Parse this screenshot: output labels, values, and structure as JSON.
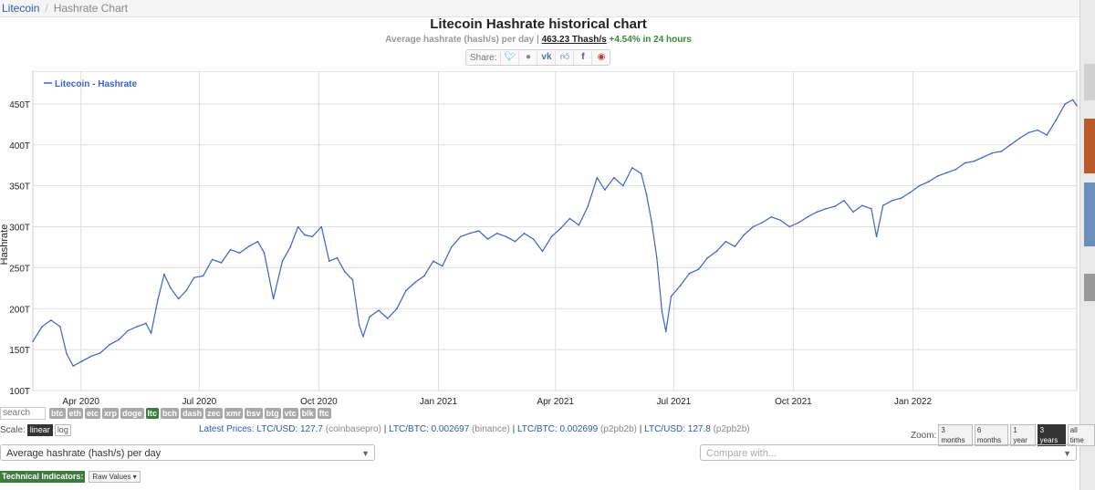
{
  "breadcrumb": {
    "root": "Litecoin",
    "separator": "/",
    "current": "Hashrate Chart"
  },
  "header": {
    "title": "Litecoin Hashrate historical chart",
    "subtitle_prefix": "Average hashrate (hash/s) per day",
    "subtitle_sep": "|",
    "current_value": "463.23 Thash/s",
    "change": "+4.54% in 24 hours"
  },
  "share": {
    "label": "Share:",
    "icons": [
      "twitter-icon",
      "reddit-icon",
      "vk-icon",
      "like-icon",
      "facebook-icon",
      "weibo-icon"
    ]
  },
  "chart_data": {
    "type": "line",
    "title": "",
    "xlabel": "",
    "ylabel": "Hashrate",
    "legend": "Litecoin - Hashrate",
    "legend_placement": "top-left",
    "grid": true,
    "color": "#3a64c8",
    "x_range": [
      "2020-02-24",
      "2022-05-07"
    ],
    "ylim": [
      100,
      490
    ],
    "y_ticks": [
      100,
      150,
      200,
      250,
      300,
      350,
      400,
      450
    ],
    "y_tick_labels": [
      "100T",
      "150T",
      "200T",
      "250T",
      "300T",
      "350T",
      "400T",
      "450T"
    ],
    "x_ticks": [
      {
        "date": "2020-04-01",
        "label": "Apr 2020"
      },
      {
        "date": "2020-07-01",
        "label": "Jul 2020"
      },
      {
        "date": "2020-10-01",
        "label": "Oct 2020"
      },
      {
        "date": "2021-01-01",
        "label": "Jan 2021"
      },
      {
        "date": "2021-04-01",
        "label": "Apr 2021"
      },
      {
        "date": "2021-07-01",
        "label": "Jul 2021"
      },
      {
        "date": "2021-10-01",
        "label": "Oct 2021"
      },
      {
        "date": "2022-01-01",
        "label": "Jan 2022"
      }
    ],
    "series": [
      {
        "name": "Litecoin - Hashrate",
        "points": [
          [
            "2020-02-24",
            160
          ],
          [
            "2020-03-02",
            178
          ],
          [
            "2020-03-09",
            186
          ],
          [
            "2020-03-16",
            178
          ],
          [
            "2020-03-21",
            145
          ],
          [
            "2020-03-26",
            130
          ],
          [
            "2020-04-02",
            136
          ],
          [
            "2020-04-09",
            142
          ],
          [
            "2020-04-16",
            146
          ],
          [
            "2020-04-23",
            156
          ],
          [
            "2020-04-30",
            162
          ],
          [
            "2020-05-07",
            173
          ],
          [
            "2020-05-14",
            178
          ],
          [
            "2020-05-21",
            182
          ],
          [
            "2020-05-25",
            170
          ],
          [
            "2020-05-30",
            210
          ],
          [
            "2020-06-04",
            242
          ],
          [
            "2020-06-09",
            225
          ],
          [
            "2020-06-15",
            212
          ],
          [
            "2020-06-21",
            222
          ],
          [
            "2020-06-27",
            238
          ],
          [
            "2020-07-04",
            240
          ],
          [
            "2020-07-11",
            260
          ],
          [
            "2020-07-18",
            256
          ],
          [
            "2020-07-25",
            272
          ],
          [
            "2020-08-01",
            268
          ],
          [
            "2020-08-08",
            276
          ],
          [
            "2020-08-15",
            282
          ],
          [
            "2020-08-20",
            268
          ],
          [
            "2020-08-27",
            212
          ],
          [
            "2020-09-03",
            258
          ],
          [
            "2020-09-09",
            275
          ],
          [
            "2020-09-15",
            300
          ],
          [
            "2020-09-20",
            290
          ],
          [
            "2020-09-26",
            288
          ],
          [
            "2020-10-03",
            300
          ],
          [
            "2020-10-09",
            258
          ],
          [
            "2020-10-15",
            262
          ],
          [
            "2020-10-21",
            245
          ],
          [
            "2020-10-27",
            235
          ],
          [
            "2020-11-01",
            180
          ],
          [
            "2020-11-04",
            166
          ],
          [
            "2020-11-09",
            190
          ],
          [
            "2020-11-16",
            198
          ],
          [
            "2020-11-23",
            188
          ],
          [
            "2020-11-30",
            200
          ],
          [
            "2020-12-07",
            222
          ],
          [
            "2020-12-14",
            232
          ],
          [
            "2020-12-21",
            240
          ],
          [
            "2020-12-28",
            258
          ],
          [
            "2021-01-04",
            252
          ],
          [
            "2021-01-11",
            275
          ],
          [
            "2021-01-18",
            288
          ],
          [
            "2021-01-25",
            292
          ],
          [
            "2021-02-01",
            295
          ],
          [
            "2021-02-08",
            285
          ],
          [
            "2021-02-15",
            292
          ],
          [
            "2021-02-22",
            288
          ],
          [
            "2021-03-01",
            282
          ],
          [
            "2021-03-08",
            292
          ],
          [
            "2021-03-15",
            285
          ],
          [
            "2021-03-22",
            270
          ],
          [
            "2021-03-29",
            288
          ],
          [
            "2021-04-05",
            298
          ],
          [
            "2021-04-12",
            310
          ],
          [
            "2021-04-19",
            302
          ],
          [
            "2021-04-26",
            325
          ],
          [
            "2021-05-03",
            360
          ],
          [
            "2021-05-09",
            345
          ],
          [
            "2021-05-16",
            360
          ],
          [
            "2021-05-23",
            350
          ],
          [
            "2021-05-30",
            372
          ],
          [
            "2021-06-06",
            365
          ],
          [
            "2021-06-10",
            340
          ],
          [
            "2021-06-14",
            306
          ],
          [
            "2021-06-18",
            262
          ],
          [
            "2021-06-22",
            196
          ],
          [
            "2021-06-25",
            172
          ],
          [
            "2021-06-29",
            215
          ],
          [
            "2021-07-06",
            228
          ],
          [
            "2021-07-13",
            243
          ],
          [
            "2021-07-20",
            248
          ],
          [
            "2021-07-27",
            262
          ],
          [
            "2021-08-03",
            270
          ],
          [
            "2021-08-10",
            282
          ],
          [
            "2021-08-17",
            276
          ],
          [
            "2021-08-24",
            290
          ],
          [
            "2021-08-31",
            300
          ],
          [
            "2021-09-07",
            305
          ],
          [
            "2021-09-14",
            312
          ],
          [
            "2021-09-21",
            308
          ],
          [
            "2021-09-28",
            300
          ],
          [
            "2021-10-05",
            305
          ],
          [
            "2021-10-12",
            312
          ],
          [
            "2021-10-19",
            318
          ],
          [
            "2021-10-26",
            322
          ],
          [
            "2021-11-02",
            325
          ],
          [
            "2021-11-09",
            332
          ],
          [
            "2021-11-16",
            318
          ],
          [
            "2021-11-23",
            326
          ],
          [
            "2021-11-30",
            322
          ],
          [
            "2021-12-04",
            288
          ],
          [
            "2021-12-09",
            326
          ],
          [
            "2021-12-16",
            332
          ],
          [
            "2021-12-23",
            335
          ],
          [
            "2021-12-30",
            342
          ],
          [
            "2022-01-06",
            350
          ],
          [
            "2022-01-13",
            355
          ],
          [
            "2022-01-20",
            362
          ],
          [
            "2022-01-27",
            366
          ],
          [
            "2022-02-03",
            370
          ],
          [
            "2022-02-10",
            378
          ],
          [
            "2022-02-17",
            380
          ],
          [
            "2022-02-24",
            385
          ],
          [
            "2022-03-03",
            390
          ],
          [
            "2022-03-10",
            392
          ],
          [
            "2022-03-17",
            400
          ],
          [
            "2022-03-24",
            408
          ],
          [
            "2022-03-31",
            415
          ],
          [
            "2022-04-07",
            418
          ],
          [
            "2022-04-14",
            412
          ],
          [
            "2022-04-21",
            430
          ],
          [
            "2022-04-28",
            450
          ],
          [
            "2022-05-04",
            455
          ],
          [
            "2022-05-07",
            448
          ]
        ]
      }
    ]
  },
  "coins": [
    "btc",
    "eth",
    "etc",
    "xrp",
    "doge",
    "ltc",
    "bch",
    "dash",
    "zec",
    "xmr",
    "bsv",
    "btg",
    "vtc",
    "blk",
    "ftc"
  ],
  "active_coin": "ltc",
  "search": {
    "placeholder": "search"
  },
  "scale": {
    "label": "Scale:",
    "options": [
      "linear",
      "log"
    ],
    "active": "linear"
  },
  "prices": {
    "label": "Latest Prices:",
    "items": [
      {
        "pair": "LTC/USD: 127.7",
        "source": "(coinbasepro)"
      },
      {
        "pair": "LTC/BTC: 0.002697",
        "source": "(binance)"
      },
      {
        "pair": "LTC/BTC: 0.002699",
        "source": "(p2pb2b)"
      },
      {
        "pair": "LTC/USD: 127.8",
        "source": "(p2pb2b)"
      }
    ]
  },
  "zoom": {
    "label": "Zoom:",
    "options": [
      "3 months",
      "6 months",
      "1 year",
      "3 years",
      "all time"
    ],
    "active": "3 years"
  },
  "metric_select": {
    "value": "Average hashrate (hash/s) per day"
  },
  "compare_select": {
    "placeholder": "Compare with..."
  },
  "technical": {
    "label": "Technical Indicators:",
    "button": "Raw Values"
  }
}
